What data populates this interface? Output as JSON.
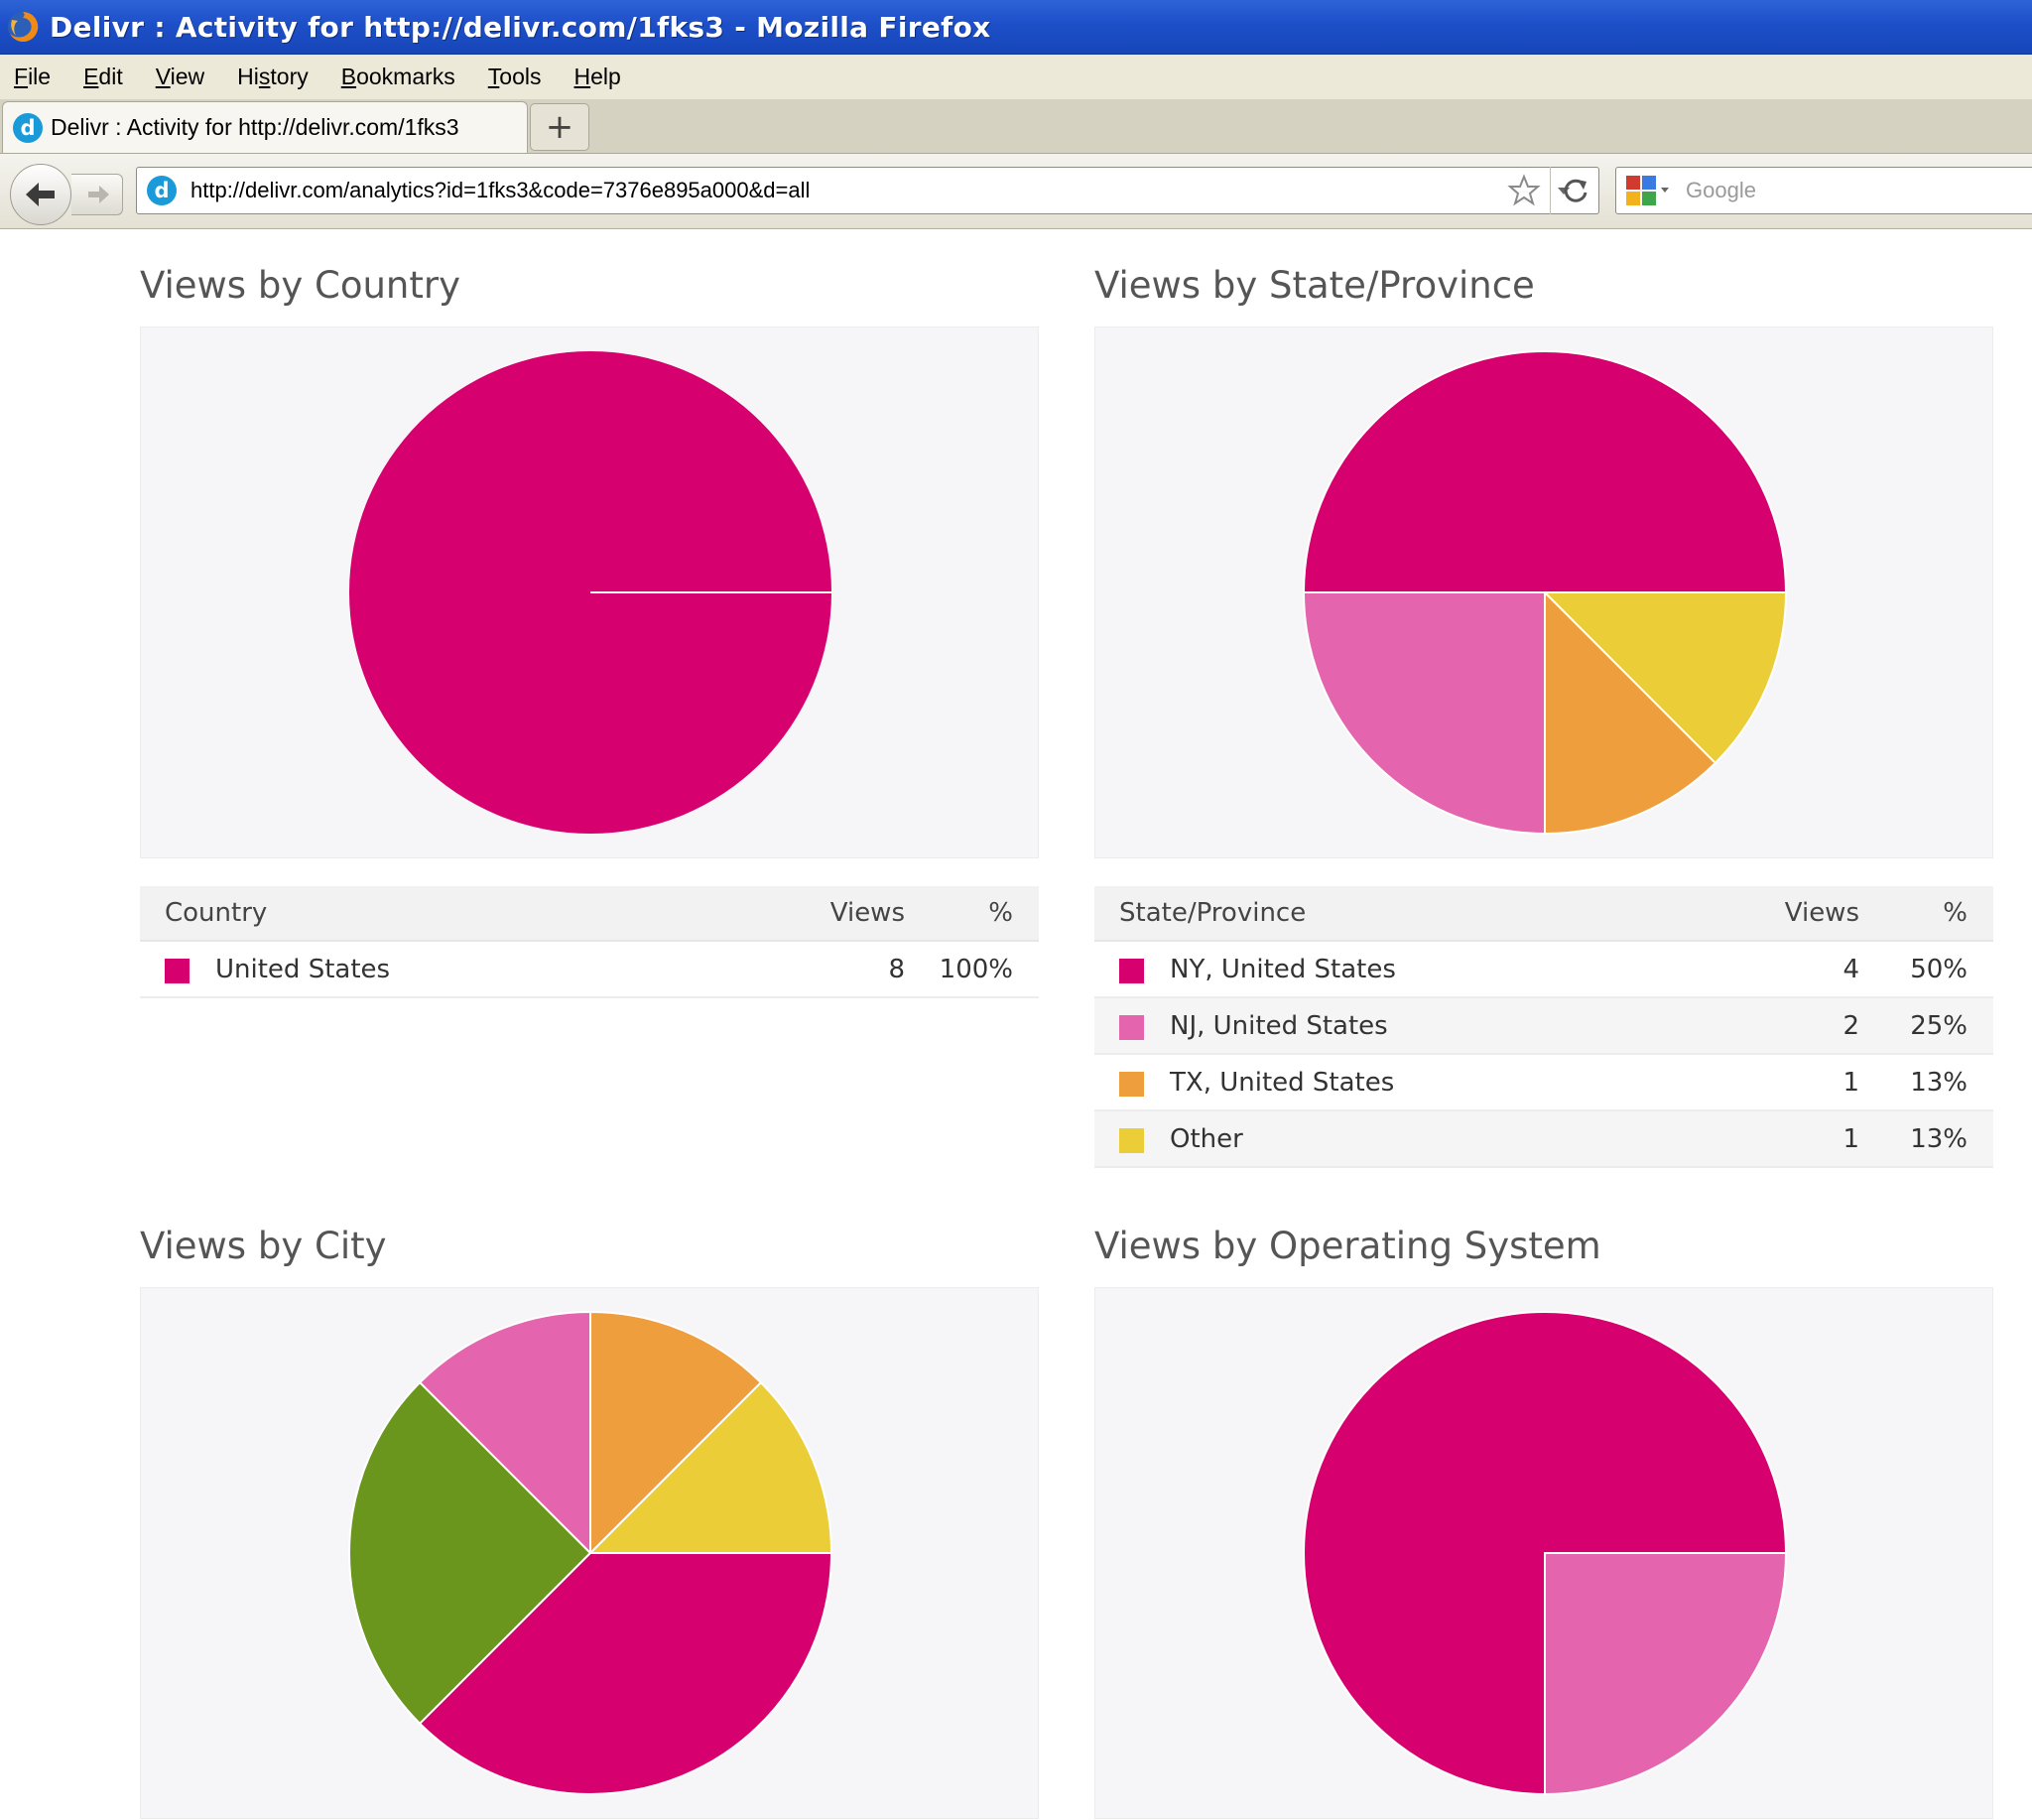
{
  "window": {
    "title": "Delivr : Activity for http://delivr.com/1fks3 - Mozilla Firefox"
  },
  "menu": [
    {
      "label": "File",
      "key": "F",
      "rest": "ile"
    },
    {
      "label": "Edit",
      "key": "E",
      "rest": "dit"
    },
    {
      "label": "View",
      "key": "V",
      "rest": "iew"
    },
    {
      "label": "History",
      "key": "",
      "pre": "Hi",
      "ulk": "s",
      "post": "tory"
    },
    {
      "label": "Bookmarks",
      "key": "B",
      "rest": "ookmarks"
    },
    {
      "label": "Tools",
      "key": "T",
      "rest": "ools"
    },
    {
      "label": "Help",
      "key": "H",
      "rest": "elp"
    }
  ],
  "tab": {
    "favicon": "d",
    "label": "Delivr : Activity for http://delivr.com/1fks3",
    "new_tab": "+"
  },
  "nav": {
    "url": "http://delivr.com/analytics?id=1fks3&code=7376e895a000&d=all",
    "search_placeholder": "Google"
  },
  "colors": {
    "magenta": "#d6006e",
    "pink": "#e464ae",
    "orange": "#ef9e3d",
    "yellow": "#ebcd38",
    "green": "#6a961e"
  },
  "panels": {
    "country": {
      "title": "Views by Country",
      "headers": {
        "name": "Country",
        "views": "Views",
        "pct": "%"
      },
      "rows": [
        {
          "name": "United States",
          "views": "8",
          "pct": "100%",
          "color": "#d6006e"
        }
      ]
    },
    "state": {
      "title": "Views by State/Province",
      "headers": {
        "name": "State/Province",
        "views": "Views",
        "pct": "%"
      },
      "rows": [
        {
          "name": "NY, United States",
          "views": "4",
          "pct": "50%",
          "color": "#d6006e"
        },
        {
          "name": "NJ, United States",
          "views": "2",
          "pct": "25%",
          "color": "#e464ae"
        },
        {
          "name": "TX, United States",
          "views": "1",
          "pct": "13%",
          "color": "#ef9e3d"
        },
        {
          "name": "Other",
          "views": "1",
          "pct": "13%",
          "color": "#ebcd38"
        }
      ]
    },
    "city": {
      "title": "Views by City"
    },
    "os": {
      "title": "Views by Operating System"
    }
  },
  "chart_data": [
    {
      "type": "pie",
      "title": "Views by Country",
      "slices": [
        {
          "label": "United States",
          "value": 8,
          "color": "#d6006e"
        }
      ]
    },
    {
      "type": "pie",
      "title": "Views by State/Province",
      "slices": [
        {
          "label": "NY, United States",
          "value": 4,
          "color": "#d6006e"
        },
        {
          "label": "NJ, United States",
          "value": 2,
          "color": "#e464ae"
        },
        {
          "label": "TX, United States",
          "value": 1,
          "color": "#ef9e3d"
        },
        {
          "label": "Other",
          "value": 1,
          "color": "#ebcd38"
        }
      ]
    },
    {
      "type": "pie",
      "title": "Views by City",
      "slices": [
        {
          "value": 1,
          "color": "#ebcd38"
        },
        {
          "value": 1,
          "color": "#ef9e3d"
        },
        {
          "value": 1,
          "color": "#e464ae"
        },
        {
          "value": 2,
          "color": "#6a961e"
        },
        {
          "value": 3,
          "color": "#d6006e"
        }
      ]
    },
    {
      "type": "pie",
      "title": "Views by Operating System",
      "slices": [
        {
          "value": 6,
          "color": "#d6006e"
        },
        {
          "value": 2,
          "color": "#e464ae"
        }
      ]
    }
  ]
}
